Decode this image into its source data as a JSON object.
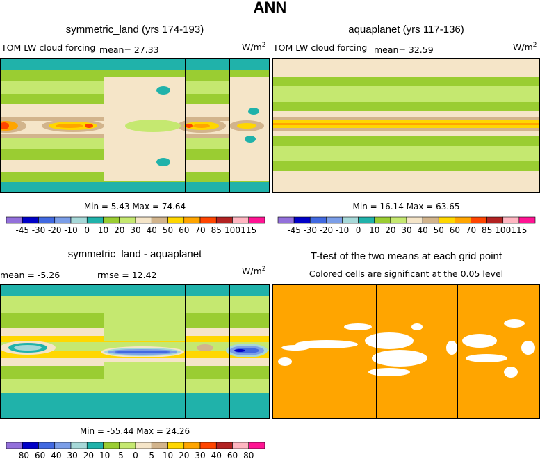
{
  "page_title": "ANN",
  "units": "W/m",
  "units_exp": "2",
  "chart_data": [
    {
      "type": "heatmap",
      "title": "symmetric_land (yrs 174-193)",
      "variable": "TOM LW cloud forcing",
      "mean_text": "mean=  27.33",
      "min_max_text": "Min =   5.43 Max =  74.64",
      "colorbar_labels": [
        "-45",
        "-30",
        "-20",
        "-10",
        "0",
        "10",
        "20",
        "30",
        "40",
        "50",
        "60",
        "70",
        "85",
        "100",
        "115"
      ],
      "colorbar_colors": [
        "#9370db",
        "#0000c8",
        "#4169e1",
        "#7b9ee8",
        "#a6d8d8",
        "#20b2aa",
        "#9acd32",
        "#c5e870",
        "#f5e5c8",
        "#d2b48c",
        "#ffd700",
        "#ffa500",
        "#ff4500",
        "#b22222",
        "#ffb6c1",
        "#ff1493"
      ],
      "field": "symmetric_land_lwcf"
    },
    {
      "type": "heatmap",
      "title": "aquaplanet (yrs 117-136)",
      "variable": "TOM LW cloud forcing",
      "mean_text": "mean=  32.59",
      "min_max_text": "Min =  16.14 Max =  63.65",
      "colorbar_labels": [
        "-45",
        "-30",
        "-20",
        "-10",
        "0",
        "10",
        "20",
        "30",
        "40",
        "50",
        "60",
        "70",
        "85",
        "100",
        "115"
      ],
      "colorbar_colors": [
        "#9370db",
        "#0000c8",
        "#4169e1",
        "#7b9ee8",
        "#a6d8d8",
        "#20b2aa",
        "#9acd32",
        "#c5e870",
        "#f5e5c8",
        "#d2b48c",
        "#ffd700",
        "#ffa500",
        "#ff4500",
        "#b22222",
        "#ffb6c1",
        "#ff1493"
      ],
      "field": "aquaplanet_lwcf"
    },
    {
      "type": "heatmap",
      "title": "symmetric_land - aquaplanet",
      "mean_text": "mean =   -5.26",
      "rmse_text": "rmse =  12.42",
      "min_max_text": "Min = -55.44 Max =  24.26",
      "colorbar_labels": [
        "-80",
        "-60",
        "-40",
        "-30",
        "-20",
        "-10",
        "-5",
        "0",
        "5",
        "10",
        "20",
        "30",
        "40",
        "60",
        "80"
      ],
      "colorbar_colors": [
        "#9370db",
        "#0000c8",
        "#4169e1",
        "#7b9ee8",
        "#a6d8d8",
        "#20b2aa",
        "#9acd32",
        "#c5e870",
        "#f5e5c8",
        "#d2b48c",
        "#ffd700",
        "#ffa500",
        "#ff4500",
        "#b22222",
        "#ffb6c1",
        "#ff1493"
      ],
      "field": "difference"
    },
    {
      "type": "heatmap",
      "title": "T-test of the two means at each grid point",
      "subtitle": "Colored cells are significant at the 0.05 level",
      "significant_color": "#ffa500",
      "field": "ttest"
    }
  ]
}
